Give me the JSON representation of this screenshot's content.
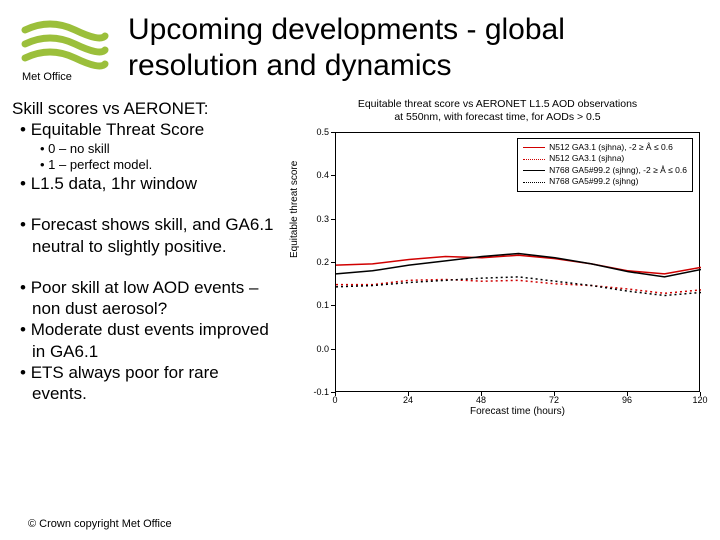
{
  "header": {
    "logo_label": "Met Office",
    "title": "Upcoming developments - global resolution and dynamics"
  },
  "left": {
    "lead": "Skill scores vs AERONET:",
    "b1": "Equitable Threat Score",
    "s1": "0 – no skill",
    "s2": "1 – perfect model.",
    "b2": "L1.5 data, 1hr window",
    "b3": "Forecast shows skill, and GA6.1 neutral to slightly positive.",
    "b4": "Poor skill at low AOD events – non dust aerosol?",
    "b5": "Moderate dust events improved in GA6.1",
    "b6": "ETS always poor for rare events."
  },
  "copyright": "© Crown copyright   Met Office",
  "chart": {
    "title_l1": "Equitable threat score vs AERONET L1.5 AOD observations",
    "title_l2": "at 550nm, with forecast time, for AODs > 0.5",
    "xlabel": "Forecast time (hours)",
    "ylabel": "Equitable threat score",
    "ylim": [
      -0.1,
      0.5
    ],
    "yticks": [
      -0.1,
      0.0,
      0.1,
      0.2,
      0.3,
      0.4,
      0.5
    ],
    "xlim": [
      0,
      120
    ],
    "xticks": [
      0,
      24,
      48,
      72,
      96,
      120
    ],
    "legend": [
      {
        "label": "N512 GA3.1 (sjhna), -2 ≥ Å ≤ 0.6",
        "color": "#d00000",
        "dash": "solid"
      },
      {
        "label": "N512 GA3.1 (sjhna)",
        "color": "#d00000",
        "dash": "dotted"
      },
      {
        "label": "N768 GA5#99.2 (sjhng), -2 ≥ Å ≤ 0.6",
        "color": "#000000",
        "dash": "solid"
      },
      {
        "label": "N768 GA5#99.2 (sjhng)",
        "color": "#000000",
        "dash": "dotted"
      }
    ],
    "series": [
      {
        "color": "#d00000",
        "dash": "solid",
        "x": [
          0,
          12,
          24,
          36,
          48,
          60,
          72,
          84,
          96,
          108,
          120
        ],
        "y": [
          0.195,
          0.198,
          0.208,
          0.215,
          0.212,
          0.218,
          0.21,
          0.198,
          0.182,
          0.175,
          0.19
        ]
      },
      {
        "color": "#000000",
        "dash": "solid",
        "x": [
          0,
          12,
          24,
          36,
          48,
          60,
          72,
          84,
          96,
          108,
          120
        ],
        "y": [
          0.175,
          0.182,
          0.195,
          0.205,
          0.215,
          0.222,
          0.212,
          0.198,
          0.18,
          0.168,
          0.185
        ]
      },
      {
        "color": "#d00000",
        "dash": "dotted",
        "x": [
          0,
          12,
          24,
          36,
          48,
          60,
          72,
          84,
          96,
          108,
          120
        ],
        "y": [
          0.15,
          0.15,
          0.16,
          0.162,
          0.158,
          0.16,
          0.152,
          0.148,
          0.14,
          0.13,
          0.138
        ]
      },
      {
        "color": "#000000",
        "dash": "dotted",
        "x": [
          0,
          12,
          24,
          36,
          48,
          60,
          72,
          84,
          96,
          108,
          120
        ],
        "y": [
          0.145,
          0.148,
          0.155,
          0.16,
          0.165,
          0.168,
          0.158,
          0.148,
          0.135,
          0.125,
          0.132
        ]
      }
    ]
  }
}
